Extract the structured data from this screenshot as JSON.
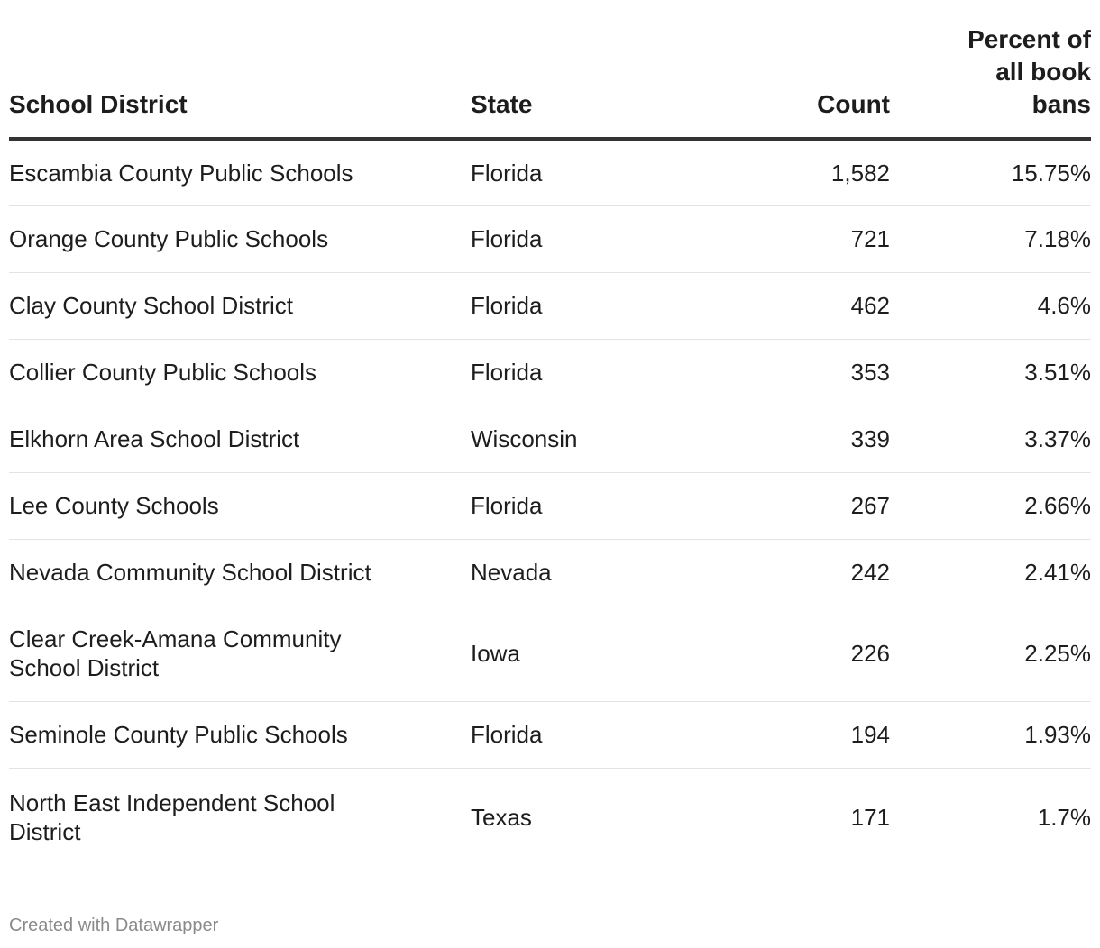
{
  "chart_data": {
    "type": "table",
    "columns": [
      "School District",
      "State",
      "Count",
      "Percent of all book bans"
    ],
    "rows": [
      {
        "district": "Escambia County Public Schools",
        "state": "Florida",
        "count": "1,582",
        "percent": "15.75%"
      },
      {
        "district": "Orange County Public Schools",
        "state": "Florida",
        "count": "721",
        "percent": "7.18%"
      },
      {
        "district": "Clay County School District",
        "state": "Florida",
        "count": "462",
        "percent": "4.6%"
      },
      {
        "district": "Collier County Public Schools",
        "state": "Florida",
        "count": "353",
        "percent": "3.51%"
      },
      {
        "district": "Elkhorn Area School District",
        "state": "Wisconsin",
        "count": "339",
        "percent": "3.37%"
      },
      {
        "district": "Lee County Schools",
        "state": "Florida",
        "count": "267",
        "percent": "2.66%"
      },
      {
        "district": "Nevada Community School District",
        "state": "Nevada",
        "count": "242",
        "percent": "2.41%"
      },
      {
        "district": "Clear Creek-Amana Community School District",
        "state": "Iowa",
        "count": "226",
        "percent": "2.25%"
      },
      {
        "district": "Seminole County Public Schools",
        "state": "Florida",
        "count": "194",
        "percent": "1.93%"
      },
      {
        "district": "North East Independent School District",
        "state": "Texas",
        "count": "171",
        "percent": "1.7%"
      }
    ]
  },
  "footer": {
    "credit": "Created with Datawrapper"
  }
}
